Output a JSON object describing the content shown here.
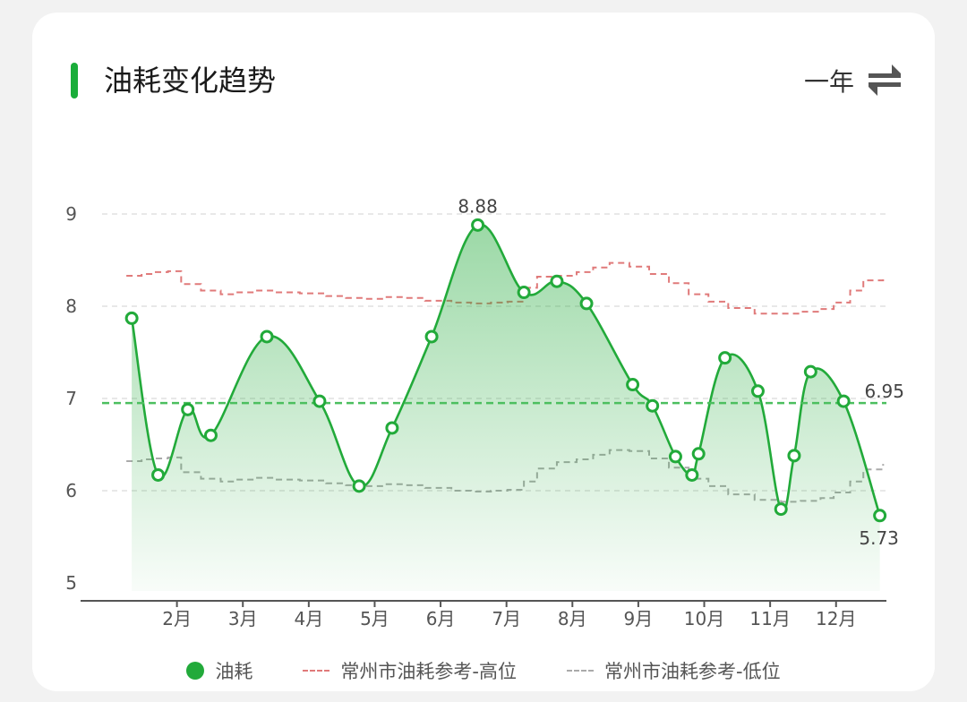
{
  "header": {
    "title": "油耗变化趋势",
    "period": "一年",
    "switch_icon": "swap-arrows-icon"
  },
  "colors": {
    "accent": "#1aad3a",
    "fuel": "#22aa3a",
    "ref_high": "#e07a7a",
    "ref_low": "#aaaaaa",
    "avg_line": "#4cbf5f"
  },
  "chart_data": {
    "type": "line",
    "title": "油耗变化趋势",
    "xlabel": "",
    "ylabel": "",
    "ylim": [
      5,
      9
    ],
    "yticks": [
      "5",
      "6",
      "7",
      "8",
      "9"
    ],
    "xticks": [
      "2月",
      "3月",
      "4月",
      "5月",
      "6月",
      "7月",
      "8月",
      "9月",
      "10月",
      "11月",
      "12月"
    ],
    "xtick_values": [
      2,
      3,
      4,
      5,
      6,
      7,
      8,
      9,
      10,
      11,
      12
    ],
    "xlim": [
      1.0,
      12.9
    ],
    "grid": true,
    "legend_position": "bottom",
    "series": [
      {
        "name": "油耗",
        "style": "solid-area",
        "x": [
          1.45,
          1.85,
          2.3,
          2.65,
          3.5,
          4.3,
          4.9,
          5.4,
          6.0,
          6.7,
          7.4,
          7.9,
          8.35,
          9.05,
          9.35,
          9.7,
          9.95,
          10.05,
          10.45,
          10.95,
          11.3,
          11.5,
          11.75,
          12.25,
          12.8
        ],
        "y": [
          7.87,
          6.17,
          6.88,
          6.6,
          7.67,
          6.97,
          6.05,
          6.68,
          7.67,
          8.88,
          8.15,
          8.27,
          8.03,
          7.15,
          6.92,
          6.37,
          6.17,
          6.4,
          7.44,
          7.08,
          5.8,
          6.38,
          7.29,
          6.97,
          5.73
        ]
      },
      {
        "name": "常州市油耗参考-高位",
        "style": "dashed-step",
        "x": [
          1.45,
          1.6,
          1.8,
          2.0,
          2.2,
          2.5,
          2.8,
          3.0,
          3.3,
          3.6,
          4.0,
          4.4,
          4.7,
          5.0,
          5.3,
          5.6,
          5.9,
          6.3,
          6.6,
          6.9,
          7.15,
          7.4,
          7.6,
          7.9,
          8.2,
          8.45,
          8.7,
          9.0,
          9.3,
          9.6,
          9.9,
          10.2,
          10.5,
          10.9,
          11.3,
          11.6,
          11.9,
          12.1,
          12.35,
          12.55,
          12.85
        ],
        "y": [
          8.33,
          8.35,
          8.37,
          8.38,
          8.24,
          8.17,
          8.13,
          8.15,
          8.17,
          8.15,
          8.14,
          8.11,
          8.09,
          8.08,
          8.1,
          8.09,
          8.06,
          8.04,
          8.03,
          8.04,
          8.05,
          8.2,
          8.32,
          8.33,
          8.37,
          8.42,
          8.47,
          8.43,
          8.35,
          8.25,
          8.13,
          8.05,
          7.98,
          7.92,
          7.92,
          7.94,
          7.97,
          8.04,
          8.17,
          8.28,
          8.31
        ]
      },
      {
        "name": "常州市油耗参考-低位",
        "style": "dashed-step",
        "x": [
          1.45,
          1.6,
          1.8,
          2.0,
          2.2,
          2.5,
          2.8,
          3.0,
          3.3,
          3.6,
          4.0,
          4.4,
          4.7,
          5.0,
          5.3,
          5.6,
          5.9,
          6.3,
          6.6,
          6.9,
          7.15,
          7.4,
          7.6,
          7.9,
          8.2,
          8.45,
          8.7,
          9.0,
          9.3,
          9.6,
          9.9,
          10.2,
          10.5,
          10.9,
          11.3,
          11.6,
          11.9,
          12.1,
          12.35,
          12.55,
          12.85
        ],
        "y": [
          6.32,
          6.34,
          6.35,
          6.36,
          6.2,
          6.13,
          6.1,
          6.12,
          6.14,
          6.12,
          6.11,
          6.08,
          6.06,
          6.05,
          6.07,
          6.06,
          6.03,
          6.0,
          5.99,
          6.0,
          6.01,
          6.1,
          6.24,
          6.31,
          6.34,
          6.39,
          6.44,
          6.43,
          6.35,
          6.25,
          6.13,
          6.05,
          5.96,
          5.9,
          5.88,
          5.89,
          5.92,
          5.98,
          6.1,
          6.23,
          6.29
        ]
      }
    ],
    "average": {
      "value": 6.95,
      "label": "6.95"
    },
    "annotations": [
      {
        "label": "8.88",
        "x": 6.7,
        "y": 8.88,
        "position": "above"
      },
      {
        "label": "5.73",
        "x": 12.8,
        "y": 5.73,
        "position": "below"
      }
    ],
    "legend": [
      "油耗",
      "常州市油耗参考-高位",
      "常州市油耗参考-低位"
    ]
  }
}
